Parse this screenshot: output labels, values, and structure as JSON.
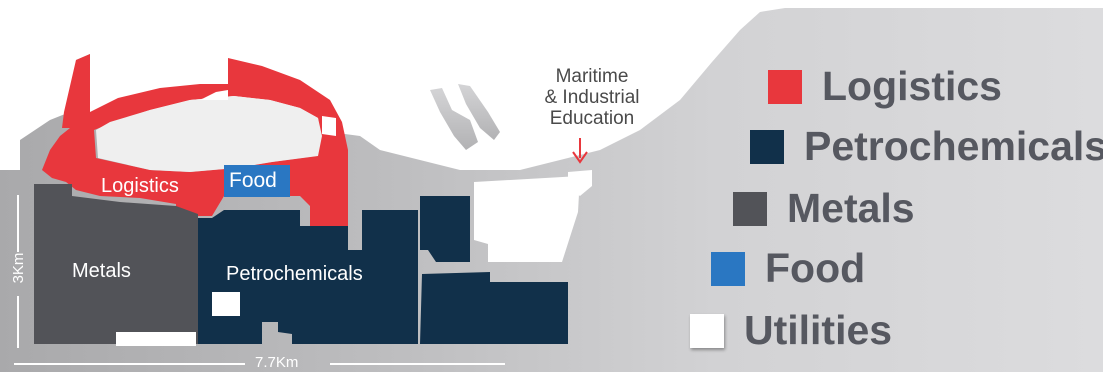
{
  "map": {
    "zone_labels": {
      "logistics": "Logistics",
      "food": "Food",
      "metals": "Metals",
      "petrochemicals": "Petrochemicals",
      "utilities": "Utilities"
    },
    "landmark": {
      "line1": "Maritime",
      "line2": "& Industrial",
      "line3": "Education"
    },
    "dimensions": {
      "height": "3Km",
      "width": "7.7Km"
    },
    "colors": {
      "logistics": "#e8373d",
      "petrochemicals": "#11304a",
      "metals": "#525358",
      "food": "#2a77c2",
      "utilities": "#ffffff",
      "land": "#b7b7b9",
      "landmark_arrow": "#e8373d"
    }
  },
  "legend": {
    "items": [
      {
        "label": "Logistics",
        "color": "#e8373d"
      },
      {
        "label": "Petrochemicals",
        "color": "#11304a"
      },
      {
        "label": "Metals",
        "color": "#525358"
      },
      {
        "label": "Food",
        "color": "#2a77c2"
      },
      {
        "label": "Utilities",
        "color": "#ffffff"
      }
    ]
  }
}
